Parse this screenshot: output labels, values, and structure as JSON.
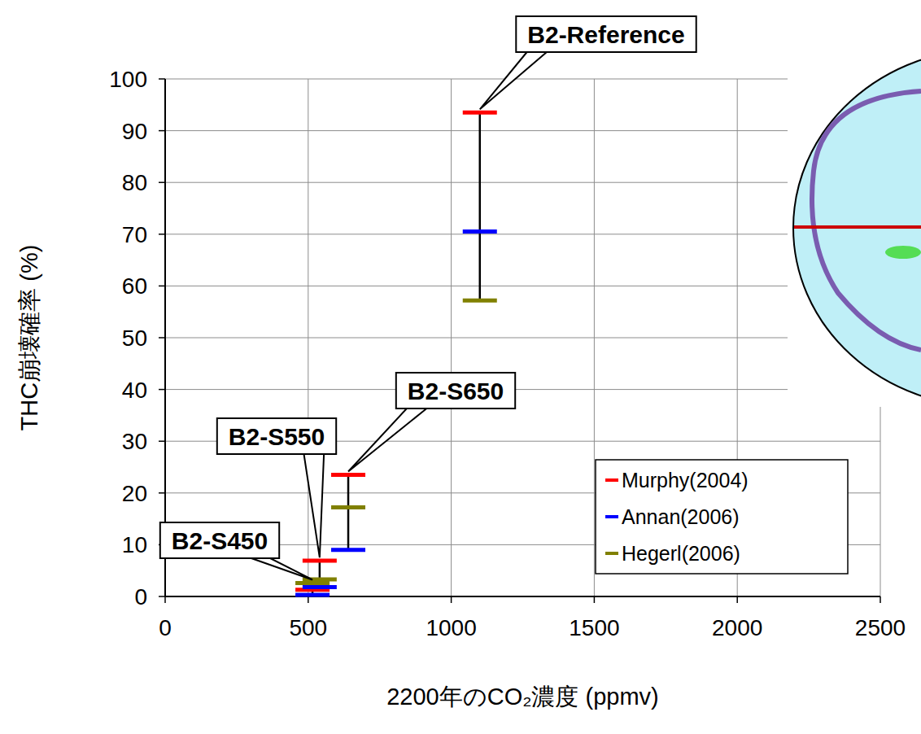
{
  "chart_data": {
    "type": "scatter",
    "marker": "dash",
    "x_label": "2200年のCO₂濃度 (ppmv)",
    "y_label": "THC崩壊確率 (%)",
    "x": [
      515,
      540,
      640,
      1100
    ],
    "annotations": [
      "B2-S450",
      "B2-S550",
      "B2-S650",
      "B2-Reference"
    ],
    "series": [
      {
        "name": "Murphy(2004)",
        "color": "#ff0000",
        "values": [
          1.3,
          6.9,
          23.5,
          93.5
        ]
      },
      {
        "name": "Annan(2006)",
        "color": "#0000ff",
        "values": [
          0.3,
          1.8,
          9,
          70.5
        ]
      },
      {
        "name": "Hegerl(2006)",
        "color": "#808000",
        "values": [
          2.6,
          3.3,
          17.2,
          57.2
        ]
      }
    ],
    "xlim": [
      0,
      2500
    ],
    "xticks": [
      0,
      500,
      1000,
      1500,
      2000,
      2500
    ],
    "ylim": [
      0,
      100
    ],
    "yticks": [
      0,
      10,
      20,
      30,
      40,
      50,
      60,
      70,
      80,
      90,
      100
    ],
    "grid": true,
    "legend": "lower right"
  }
}
